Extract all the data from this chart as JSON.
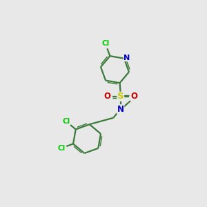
{
  "bg_color": "#e8e8e8",
  "bond_color": "#3a7a3a",
  "atom_colors": {
    "Cl": "#00cc00",
    "N": "#0000cc",
    "S": "#cccc00",
    "O": "#cc0000",
    "C": "#3a7a3a"
  }
}
